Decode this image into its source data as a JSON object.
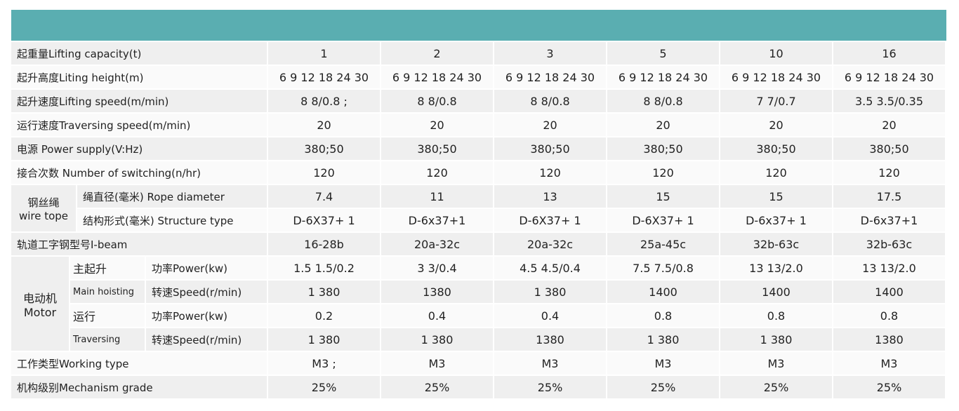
{
  "table": {
    "rows": [
      {
        "label": "起重量Lifting capacity(t)",
        "values": [
          "1",
          "2",
          "3",
          "5",
          "10",
          "16"
        ]
      },
      {
        "label": "起升高度Liting height(m)",
        "values": [
          "6 9 12 18 24 30",
          "6 9 12 18 24 30",
          "6 9 12 18 24 30",
          "6 9 12 18 24 30",
          "6 9 12 18 24 30",
          "6 9 12 18 24 30"
        ]
      },
      {
        "label": "起升速度Lifting speed(m/min)",
        "values": [
          "8 8/0.8 ;",
          "8 8/0.8",
          "8 8/0.8",
          "8 8/0.8",
          "7 7/0.7",
          "3.5 3.5/0.35"
        ]
      },
      {
        "label": "运行速度Traversing speed(m/min)",
        "values": [
          "20",
          "20",
          "20",
          "20",
          "20",
          "20"
        ]
      },
      {
        "label": "电源 Power supply(V:Hz)",
        "values": [
          "380;50",
          "380;50",
          "380;50",
          "380;50",
          "380;50",
          "380;50"
        ]
      },
      {
        "label": "接合次数 Number of switching(n/hr)",
        "values": [
          "120",
          "120",
          "120",
          "120",
          "120",
          "120"
        ]
      },
      {
        "label": "绳直径(毫米) Rope diameter",
        "values": [
          "7.4",
          "11",
          "13",
          "15",
          "15",
          "17.5"
        ]
      },
      {
        "label": "结构形式(毫米) Structure type",
        "values": [
          "D-6X37+ 1",
          "D-6x37+1",
          "D-6X37+ 1",
          "D-6X37+ 1",
          "D-6x37+ 1",
          "D-6x37+1"
        ]
      },
      {
        "label": "轨道工字钢型号I-beam",
        "values": [
          "16-28b",
          "20a-32c",
          "20a-32c",
          "25a-45c",
          "32b-63c",
          "32b-63c"
        ]
      },
      {
        "label": "功率Power(kw)",
        "values": [
          "1.5 1.5/0.2",
          "3 3/0.4",
          "4.5 4.5/0.4",
          "7.5 7.5/0.8",
          "13 13/2.0",
          "13 13/2.0"
        ]
      },
      {
        "label": "转速Speed(r/min)",
        "values": [
          "1 380",
          "1380",
          "1 380",
          "1400",
          "1400",
          "1400"
        ]
      },
      {
        "label": "功率Power(kw)",
        "values": [
          "0.2",
          "0.4",
          "0.4",
          "0.8",
          "0.8",
          "0.8"
        ]
      },
      {
        "label": "转速Speed(r/min)",
        "values": [
          "1 380",
          "1 380",
          "1380",
          "1 380",
          "1 380",
          "1380"
        ]
      },
      {
        "label": "工作类型Working type",
        "values": [
          "M3 ;",
          "M3",
          "M3",
          "M3",
          "M3",
          "M3"
        ]
      },
      {
        "label": "机构级别Mechanism grade",
        "values": [
          "25%",
          "25%",
          "25%",
          "25%",
          "25%",
          "25%"
        ]
      }
    ],
    "wire_group": [
      "钢丝绳",
      "wire tope"
    ],
    "motor_group": [
      "电动机",
      "Motor"
    ],
    "motor_sub": [
      [
        "主起升",
        "Main hoisting"
      ],
      [
        "运行",
        "Traversing"
      ]
    ]
  }
}
